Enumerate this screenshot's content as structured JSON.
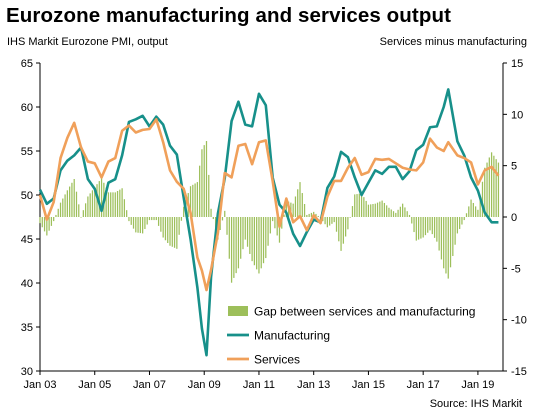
{
  "chart_data": {
    "type": "line",
    "title": "Eurozone manufacturing and services output",
    "left_axis_label": "IHS Markit  Eurozone PMI, output",
    "right_axis_label": "Services minus manufacturing",
    "source": "Source: IHS Markit",
    "left_ylim": [
      30,
      65
    ],
    "left_ticks": [
      30,
      35,
      40,
      45,
      50,
      55,
      60,
      65
    ],
    "right_ylim": [
      -15,
      15
    ],
    "right_ticks": [
      -15,
      -10,
      -5,
      0,
      5,
      10,
      15
    ],
    "xlim": [
      "2003-01",
      "2019-12"
    ],
    "x_ticks": [
      "Jan 03",
      "Jan 05",
      "Jan 07",
      "Jan 09",
      "Jan 11",
      "Jan 13",
      "Jan 15",
      "Jan 17",
      "Jan 19"
    ],
    "legend_position": "bottom-right",
    "series": [
      {
        "name": "Manufacturing",
        "axis": "left",
        "type": "line",
        "color": "#17908a",
        "x": [
          "2003-01",
          "2003-04",
          "2003-07",
          "2003-10",
          "2004-01",
          "2004-04",
          "2004-07",
          "2004-10",
          "2005-01",
          "2005-04",
          "2005-07",
          "2005-10",
          "2006-01",
          "2006-04",
          "2006-07",
          "2006-10",
          "2007-01",
          "2007-04",
          "2007-07",
          "2007-10",
          "2008-01",
          "2008-04",
          "2008-07",
          "2008-10",
          "2008-12",
          "2009-02",
          "2009-04",
          "2009-07",
          "2009-10",
          "2010-01",
          "2010-04",
          "2010-07",
          "2010-10",
          "2011-01",
          "2011-04",
          "2011-07",
          "2011-10",
          "2012-01",
          "2012-04",
          "2012-07",
          "2012-10",
          "2013-01",
          "2013-04",
          "2013-07",
          "2013-10",
          "2014-01",
          "2014-04",
          "2014-07",
          "2014-10",
          "2015-01",
          "2015-04",
          "2015-07",
          "2015-10",
          "2016-01",
          "2016-04",
          "2016-07",
          "2016-10",
          "2017-01",
          "2017-04",
          "2017-07",
          "2017-10",
          "2017-12",
          "2018-04",
          "2018-07",
          "2018-10",
          "2019-01",
          "2019-04",
          "2019-07",
          "2019-10"
        ],
        "values": [
          50.6,
          49.0,
          49.6,
          52.8,
          53.9,
          54.5,
          55.4,
          51.8,
          50.7,
          48.2,
          51.4,
          51.8,
          54.5,
          58.3,
          58.6,
          59.0,
          57.8,
          58.9,
          58.0,
          55.6,
          54.6,
          49.7,
          45.0,
          39.5,
          34.8,
          31.8,
          40.7,
          47.9,
          51.9,
          58.4,
          60.6,
          58.0,
          57.8,
          61.5,
          60.2,
          52.0,
          48.9,
          48.0,
          45.6,
          44.2,
          45.8,
          47.2,
          46.9,
          50.8,
          52.1,
          54.9,
          54.3,
          52.0,
          50.0,
          51.4,
          52.8,
          52.4,
          53.2,
          53.2,
          51.8,
          52.7,
          55.1,
          55.7,
          57.7,
          57.8,
          60.0,
          62.0,
          56.1,
          54.5,
          52.0,
          50.5,
          48.0,
          46.9,
          46.9
        ]
      },
      {
        "name": "Services",
        "axis": "left",
        "type": "line",
        "color": "#f0a05a",
        "x": [
          "2003-01",
          "2003-04",
          "2003-07",
          "2003-10",
          "2004-01",
          "2004-04",
          "2004-07",
          "2004-10",
          "2005-01",
          "2005-04",
          "2005-07",
          "2005-10",
          "2006-01",
          "2006-04",
          "2006-07",
          "2006-10",
          "2007-01",
          "2007-04",
          "2007-07",
          "2007-10",
          "2008-01",
          "2008-04",
          "2008-07",
          "2008-10",
          "2008-12",
          "2009-02",
          "2009-04",
          "2009-07",
          "2009-10",
          "2010-01",
          "2010-04",
          "2010-07",
          "2010-10",
          "2011-01",
          "2011-04",
          "2011-07",
          "2011-10",
          "2012-01",
          "2012-04",
          "2012-07",
          "2012-10",
          "2013-01",
          "2013-04",
          "2013-07",
          "2013-10",
          "2014-01",
          "2014-04",
          "2014-07",
          "2014-10",
          "2015-01",
          "2015-04",
          "2015-07",
          "2015-10",
          "2016-01",
          "2016-04",
          "2016-07",
          "2016-10",
          "2017-01",
          "2017-04",
          "2017-07",
          "2017-10",
          "2017-12",
          "2018-04",
          "2018-07",
          "2018-10",
          "2019-01",
          "2019-04",
          "2019-07",
          "2019-10"
        ],
        "values": [
          50.0,
          47.2,
          49.2,
          54.2,
          56.5,
          58.2,
          55.4,
          53.8,
          53.6,
          52.0,
          53.8,
          54.2,
          57.3,
          57.9,
          57.1,
          57.4,
          57.5,
          58.6,
          56.0,
          52.8,
          51.5,
          50.7,
          48.0,
          42.9,
          41.4,
          39.2,
          41.5,
          45.7,
          52.5,
          52.0,
          55.6,
          55.8,
          53.5,
          56.0,
          56.2,
          51.6,
          46.4,
          49.6,
          46.9,
          47.6,
          46.0,
          47.7,
          46.8,
          49.8,
          51.6,
          51.6,
          53.1,
          54.2,
          52.3,
          52.6,
          54.1,
          54.0,
          54.1,
          53.6,
          53.1,
          52.9,
          52.8,
          53.7,
          56.4,
          55.4,
          55.0,
          56.0,
          54.5,
          54.2,
          53.7,
          51.2,
          52.8,
          53.2,
          52.2
        ]
      },
      {
        "name": "Gap between services and manufacturing",
        "axis": "right",
        "type": "bar",
        "color": "#9dbf5a",
        "x": [
          "2003-01",
          "2003-04",
          "2003-07",
          "2003-10",
          "2004-01",
          "2004-04",
          "2004-07",
          "2004-10",
          "2005-01",
          "2005-04",
          "2005-07",
          "2005-10",
          "2006-01",
          "2006-04",
          "2006-07",
          "2006-10",
          "2007-01",
          "2007-04",
          "2007-07",
          "2007-10",
          "2008-01",
          "2008-04",
          "2008-07",
          "2008-10",
          "2008-12",
          "2009-02",
          "2009-04",
          "2009-07",
          "2009-10",
          "2010-01",
          "2010-04",
          "2010-07",
          "2010-10",
          "2011-01",
          "2011-04",
          "2011-07",
          "2011-10",
          "2012-01",
          "2012-04",
          "2012-07",
          "2012-10",
          "2013-01",
          "2013-04",
          "2013-07",
          "2013-10",
          "2014-01",
          "2014-04",
          "2014-07",
          "2014-10",
          "2015-01",
          "2015-04",
          "2015-07",
          "2015-10",
          "2016-01",
          "2016-04",
          "2016-07",
          "2016-10",
          "2017-01",
          "2017-04",
          "2017-07",
          "2017-10",
          "2017-12",
          "2018-04",
          "2018-07",
          "2018-10",
          "2019-01",
          "2019-04",
          "2019-07",
          "2019-10"
        ],
        "values": [
          -0.6,
          -1.8,
          -0.4,
          1.4,
          2.6,
          3.7,
          0.0,
          2.0,
          2.9,
          3.8,
          2.4,
          2.4,
          2.8,
          -0.4,
          -1.5,
          -1.6,
          -0.3,
          -0.3,
          -2.0,
          -2.8,
          -3.1,
          1.0,
          3.0,
          3.4,
          6.6,
          7.4,
          0.8,
          -2.2,
          0.6,
          -6.4,
          -5.0,
          -2.2,
          -4.3,
          -5.5,
          -4.0,
          -0.4,
          -2.5,
          1.6,
          1.3,
          3.4,
          0.2,
          0.5,
          -0.1,
          -1.0,
          -0.5,
          -3.3,
          -1.2,
          2.2,
          2.3,
          1.2,
          1.3,
          1.6,
          0.9,
          0.4,
          1.3,
          0.2,
          -2.3,
          -2.0,
          -1.3,
          -2.4,
          -5.0,
          -6.0,
          -1.6,
          -0.3,
          1.7,
          0.7,
          4.8,
          6.3,
          5.3
        ]
      }
    ]
  }
}
